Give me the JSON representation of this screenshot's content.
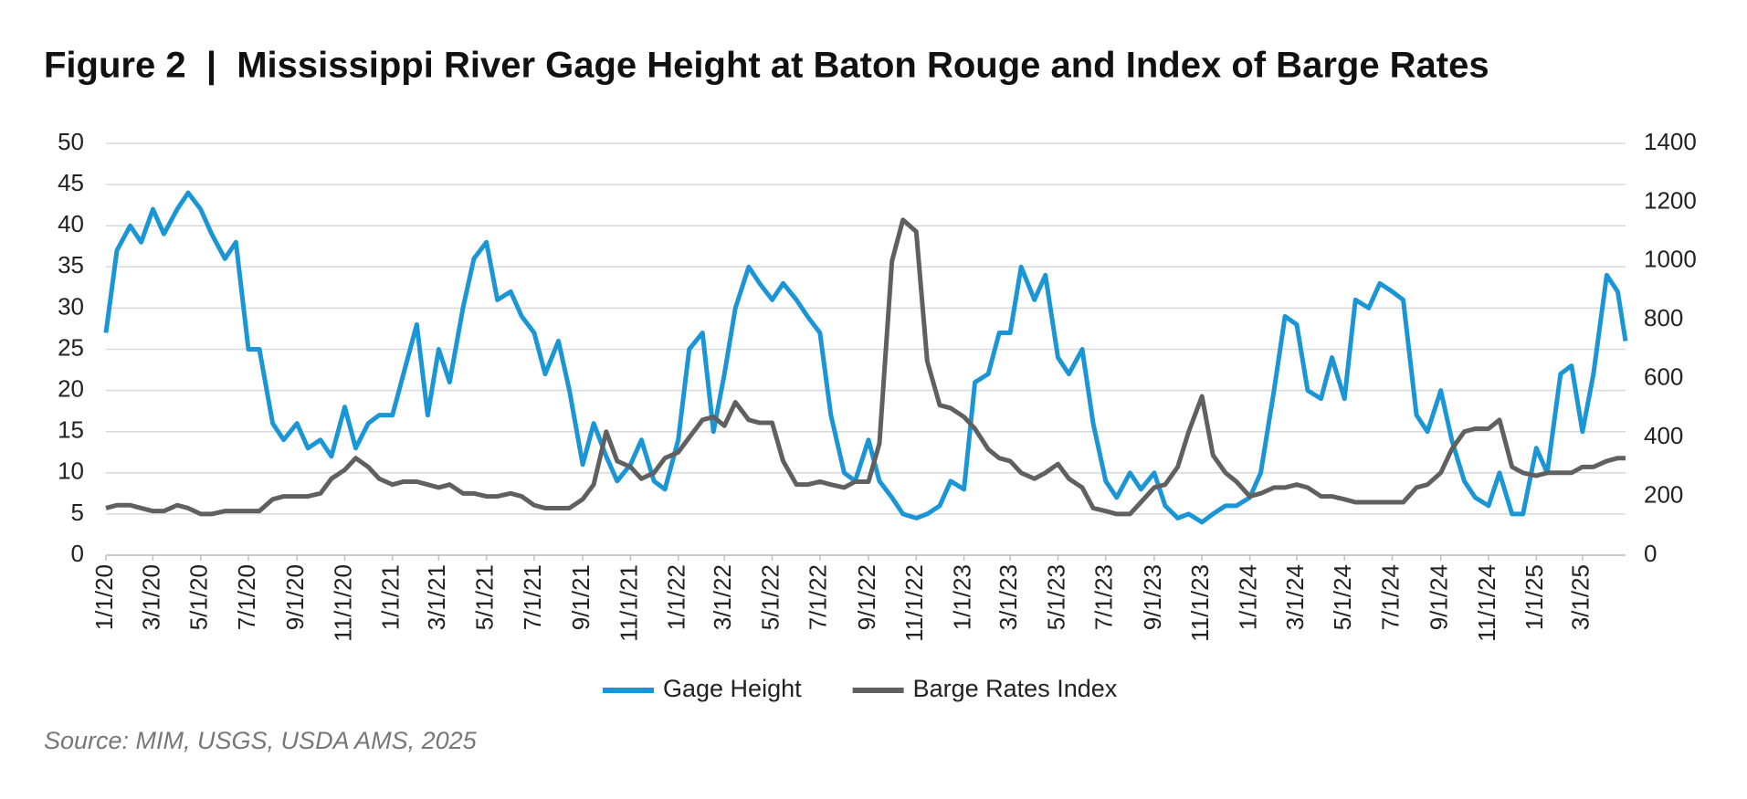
{
  "chart_data": {
    "type": "line",
    "title": "Figure 2  |  Mississippi River Gage Height at Baton Rouge and Index of Barge Rates",
    "source": "Source: MIM, USGS, USDA AMS, 2025",
    "x": [
      "2020-01-01",
      "2020-01-15",
      "2020-02-01",
      "2020-02-15",
      "2020-03-01",
      "2020-03-15",
      "2020-04-01",
      "2020-04-15",
      "2020-05-01",
      "2020-05-15",
      "2020-06-01",
      "2020-06-15",
      "2020-07-01",
      "2020-07-15",
      "2020-08-01",
      "2020-08-15",
      "2020-09-01",
      "2020-09-15",
      "2020-10-01",
      "2020-10-15",
      "2020-11-01",
      "2020-11-15",
      "2020-12-01",
      "2020-12-15",
      "2021-01-01",
      "2021-01-15",
      "2021-02-01",
      "2021-02-15",
      "2021-03-01",
      "2021-03-15",
      "2021-04-01",
      "2021-04-15",
      "2021-05-01",
      "2021-05-15",
      "2021-06-01",
      "2021-06-15",
      "2021-07-01",
      "2021-07-15",
      "2021-08-01",
      "2021-08-15",
      "2021-09-01",
      "2021-09-15",
      "2021-10-01",
      "2021-10-15",
      "2021-11-01",
      "2021-11-15",
      "2021-12-01",
      "2021-12-15",
      "2022-01-01",
      "2022-01-15",
      "2022-02-01",
      "2022-02-15",
      "2022-03-01",
      "2022-03-15",
      "2022-04-01",
      "2022-04-15",
      "2022-05-01",
      "2022-05-15",
      "2022-06-01",
      "2022-06-15",
      "2022-07-01",
      "2022-07-15",
      "2022-08-01",
      "2022-08-15",
      "2022-09-01",
      "2022-09-15",
      "2022-10-01",
      "2022-10-15",
      "2022-11-01",
      "2022-11-15",
      "2022-12-01",
      "2022-12-15",
      "2023-01-01",
      "2023-01-15",
      "2023-02-01",
      "2023-02-15",
      "2023-03-01",
      "2023-03-15",
      "2023-04-01",
      "2023-04-15",
      "2023-05-01",
      "2023-05-15",
      "2023-06-01",
      "2023-06-15",
      "2023-07-01",
      "2023-07-15",
      "2023-08-01",
      "2023-08-15",
      "2023-09-01",
      "2023-09-15",
      "2023-10-01",
      "2023-10-15",
      "2023-11-01",
      "2023-11-15",
      "2023-12-01",
      "2023-12-15",
      "2024-01-01",
      "2024-01-15",
      "2024-02-01",
      "2024-02-15",
      "2024-03-01",
      "2024-03-15",
      "2024-04-01",
      "2024-04-15",
      "2024-05-01",
      "2024-05-15",
      "2024-06-01",
      "2024-06-15",
      "2024-07-01",
      "2024-07-15",
      "2024-08-01",
      "2024-08-15",
      "2024-09-01",
      "2024-09-15",
      "2024-10-01",
      "2024-10-15",
      "2024-11-01",
      "2024-11-15",
      "2024-12-01",
      "2024-12-15",
      "2025-01-01",
      "2025-01-15",
      "2025-02-01",
      "2025-02-15",
      "2025-03-01",
      "2025-03-15",
      "2025-04-01",
      "2025-04-15",
      "2025-04-25"
    ],
    "series": [
      {
        "name": "Gage Height",
        "color": "#1a96d6",
        "axis": "y",
        "values": [
          27,
          37,
          40,
          38,
          42,
          39,
          42,
          44,
          42,
          39,
          36,
          38,
          25,
          25,
          16,
          14,
          16,
          13,
          14,
          12,
          18,
          13,
          16,
          17,
          17,
          22,
          28,
          17,
          25,
          21,
          30,
          36,
          38,
          31,
          32,
          29,
          27,
          22,
          26,
          20,
          11,
          16,
          12,
          9,
          11,
          14,
          9,
          8,
          14,
          25,
          27,
          15,
          22,
          30,
          35,
          33,
          31,
          33,
          31,
          29,
          27,
          17,
          10,
          9,
          14,
          9,
          7,
          5,
          4.5,
          5,
          6,
          9,
          8,
          21,
          22,
          27,
          27,
          35,
          31,
          34,
          24,
          22,
          25,
          16,
          9,
          7,
          10,
          8,
          10,
          6,
          4.5,
          5,
          4,
          5,
          6,
          6,
          7,
          10,
          20,
          29,
          28,
          20,
          19,
          24,
          19,
          31,
          30,
          33,
          32,
          31,
          17,
          15,
          20,
          14,
          9,
          7,
          6,
          10,
          5,
          5,
          13,
          10,
          22,
          23,
          15,
          22,
          34,
          32,
          26
        ]
      },
      {
        "name": "Barge Rates Index",
        "color": "#606060",
        "axis": "y2",
        "values": [
          160,
          170,
          170,
          160,
          150,
          150,
          170,
          160,
          140,
          140,
          150,
          150,
          150,
          150,
          190,
          200,
          200,
          200,
          210,
          260,
          290,
          330,
          300,
          260,
          240,
          250,
          250,
          240,
          230,
          240,
          210,
          210,
          200,
          200,
          210,
          200,
          170,
          160,
          160,
          160,
          190,
          240,
          420,
          320,
          300,
          260,
          280,
          330,
          350,
          400,
          460,
          470,
          440,
          520,
          460,
          450,
          450,
          320,
          240,
          240,
          250,
          240,
          230,
          250,
          250,
          380,
          1000,
          1140,
          1100,
          660,
          510,
          500,
          470,
          430,
          360,
          330,
          320,
          280,
          260,
          280,
          310,
          260,
          230,
          160,
          150,
          140,
          140,
          180,
          230,
          240,
          300,
          420,
          540,
          340,
          280,
          250,
          200,
          210,
          230,
          230,
          240,
          230,
          200,
          200,
          190,
          180,
          180,
          180,
          180,
          180,
          230,
          240,
          280,
          360,
          420,
          430,
          430,
          460,
          300,
          280,
          270,
          280,
          280,
          280,
          300,
          300,
          320,
          330,
          330
        ]
      }
    ],
    "xlim": [
      "2020-01-01",
      "2025-04-25"
    ],
    "xticks": [
      {
        "value": "2020-01-01",
        "label": "1/1/20"
      },
      {
        "value": "2020-03-01",
        "label": "3/1/20"
      },
      {
        "value": "2020-05-01",
        "label": "5/1/20"
      },
      {
        "value": "2020-07-01",
        "label": "7/1/20"
      },
      {
        "value": "2020-09-01",
        "label": "9/1/20"
      },
      {
        "value": "2020-11-01",
        "label": "11/1/20"
      },
      {
        "value": "2021-01-01",
        "label": "1/1/21"
      },
      {
        "value": "2021-03-01",
        "label": "3/1/21"
      },
      {
        "value": "2021-05-01",
        "label": "5/1/21"
      },
      {
        "value": "2021-07-01",
        "label": "7/1/21"
      },
      {
        "value": "2021-09-01",
        "label": "9/1/21"
      },
      {
        "value": "2021-11-01",
        "label": "11/1/21"
      },
      {
        "value": "2022-01-01",
        "label": "1/1/22"
      },
      {
        "value": "2022-03-01",
        "label": "3/1/22"
      },
      {
        "value": "2022-05-01",
        "label": "5/1/22"
      },
      {
        "value": "2022-07-01",
        "label": "7/1/22"
      },
      {
        "value": "2022-09-01",
        "label": "9/1/22"
      },
      {
        "value": "2022-11-01",
        "label": "11/1/22"
      },
      {
        "value": "2023-01-01",
        "label": "1/1/23"
      },
      {
        "value": "2023-03-01",
        "label": "3/1/23"
      },
      {
        "value": "2023-05-01",
        "label": "5/1/23"
      },
      {
        "value": "2023-07-01",
        "label": "7/1/23"
      },
      {
        "value": "2023-09-01",
        "label": "9/1/23"
      },
      {
        "value": "2023-11-01",
        "label": "11/1/23"
      },
      {
        "value": "2024-01-01",
        "label": "1/1/24"
      },
      {
        "value": "2024-03-01",
        "label": "3/1/24"
      },
      {
        "value": "2024-05-01",
        "label": "5/1/24"
      },
      {
        "value": "2024-07-01",
        "label": "7/1/24"
      },
      {
        "value": "2024-09-01",
        "label": "9/1/24"
      },
      {
        "value": "2024-11-01",
        "label": "11/1/24"
      },
      {
        "value": "2025-01-01",
        "label": "1/1/25"
      },
      {
        "value": "2025-03-01",
        "label": "3/1/25"
      }
    ],
    "ylim": [
      0,
      50
    ],
    "yticks": [
      0,
      5,
      10,
      15,
      20,
      25,
      30,
      35,
      40,
      45,
      50
    ],
    "y2lim": [
      0,
      1400
    ],
    "y2ticks": [
      0,
      200,
      400,
      600,
      800,
      1000,
      1200,
      1400
    ],
    "grid": true,
    "legend": "bottom"
  }
}
